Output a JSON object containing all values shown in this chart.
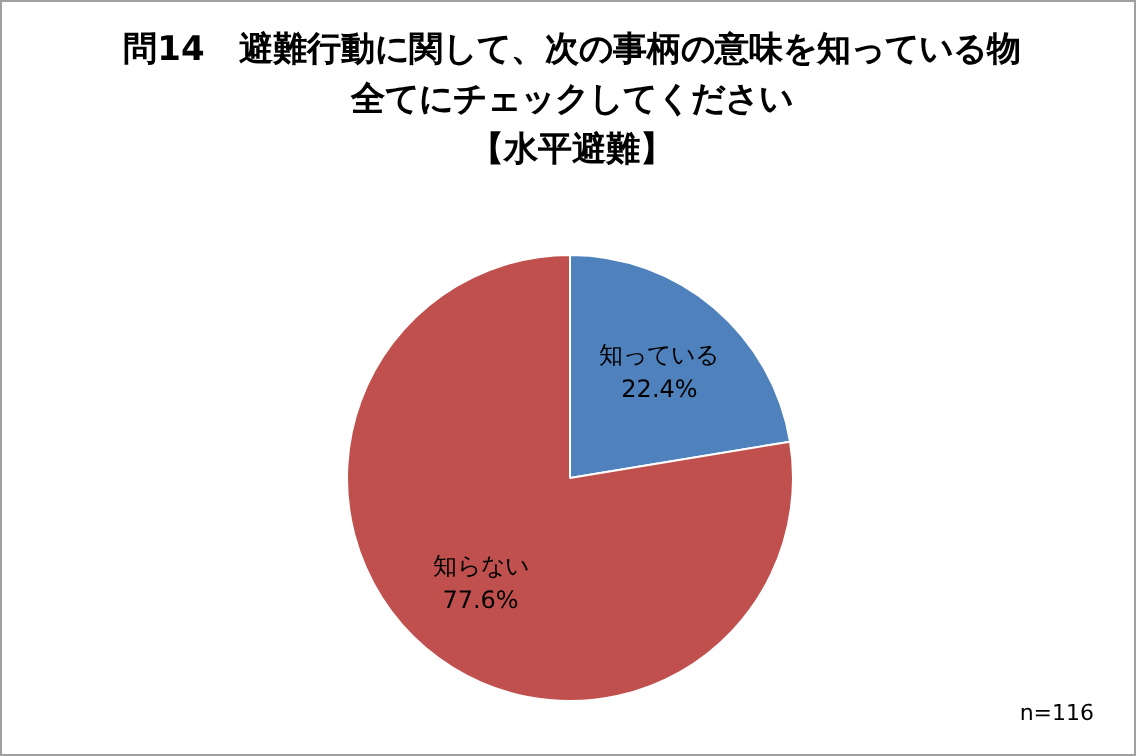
{
  "chart_data": {
    "type": "pie",
    "title": "問14　避難行動に関して、次の事柄の意味を知っている物全てにチェックしてください",
    "subtitle": "【水平避難】",
    "categories": [
      "知っている",
      "知らない"
    ],
    "values": [
      22.4,
      77.6
    ],
    "colors": [
      "#4f81bd",
      "#c0504d"
    ],
    "value_labels": [
      "22.4%",
      "77.6%"
    ],
    "legend": false,
    "annotations": [
      "n=116"
    ]
  }
}
